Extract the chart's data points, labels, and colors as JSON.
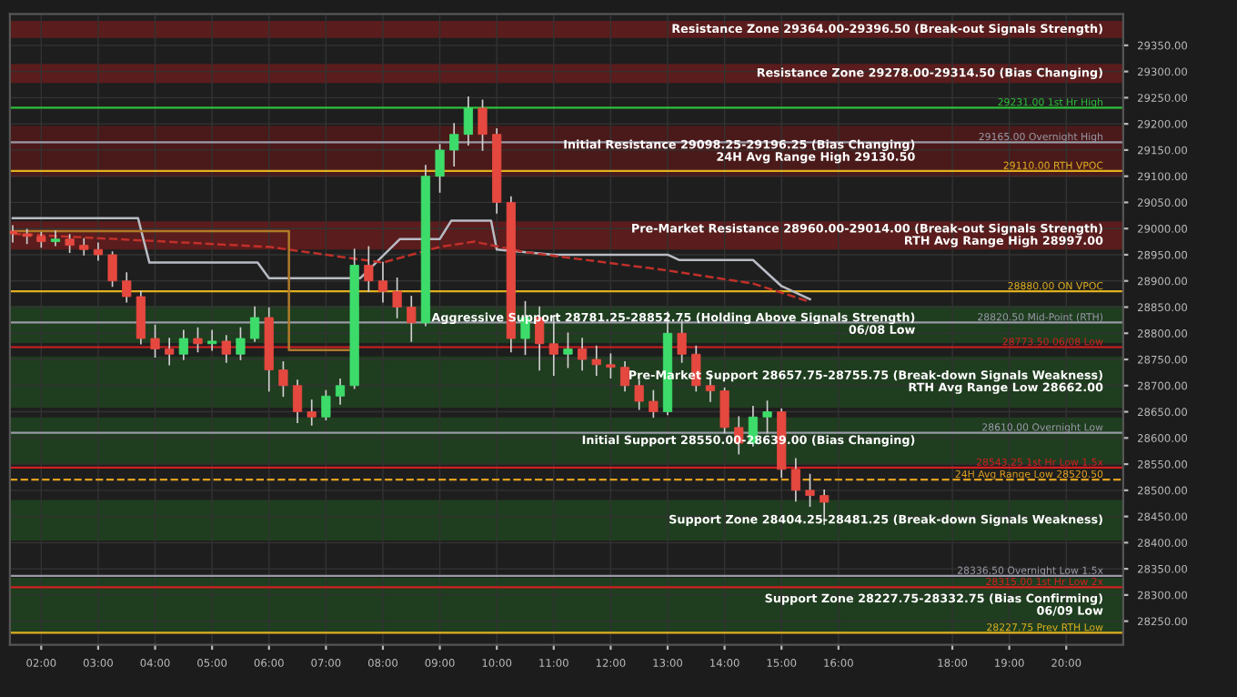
{
  "chart_data": {
    "type": "candlestick",
    "x": [
      1.5,
      1.75,
      2.0,
      2.25,
      2.5,
      2.75,
      3.0,
      3.25,
      3.5,
      3.75,
      4.0,
      4.25,
      4.5,
      4.75,
      5.0,
      5.25,
      5.5,
      5.75,
      6.0,
      6.25,
      6.5,
      6.75,
      7.0,
      7.25,
      7.5,
      7.75,
      8.0,
      8.25,
      8.5,
      8.75,
      9.0,
      9.25,
      9.5,
      9.75,
      10.0,
      10.25,
      10.5,
      10.75,
      11.0,
      11.25,
      11.5,
      11.75,
      12.0,
      12.25,
      12.5,
      12.75,
      13.0,
      13.25,
      13.5,
      13.75,
      14.0,
      14.25,
      14.5,
      14.75,
      15.0,
      15.25,
      15.5,
      15.75
    ],
    "ohlc": [
      [
        28995,
        29005,
        28975,
        28990
      ],
      [
        28990,
        28998,
        28972,
        28985
      ],
      [
        28985,
        28992,
        28965,
        28975
      ],
      [
        28975,
        28995,
        28968,
        28980
      ],
      [
        28980,
        28988,
        28955,
        28968
      ],
      [
        28968,
        28980,
        28950,
        28960
      ],
      [
        28960,
        28972,
        28940,
        28950
      ],
      [
        28950,
        28955,
        28890,
        28900
      ],
      [
        28900,
        28915,
        28860,
        28870
      ],
      [
        28870,
        28880,
        28780,
        28790
      ],
      [
        28790,
        28815,
        28755,
        28770
      ],
      [
        28770,
        28790,
        28740,
        28760
      ],
      [
        28760,
        28805,
        28750,
        28790
      ],
      [
        28790,
        28810,
        28765,
        28780
      ],
      [
        28780,
        28805,
        28768,
        28785
      ],
      [
        28785,
        28795,
        28745,
        28760
      ],
      [
        28760,
        28810,
        28750,
        28790
      ],
      [
        28790,
        28850,
        28785,
        28830
      ],
      [
        28830,
        28848,
        28690,
        28730
      ],
      [
        28730,
        28745,
        28680,
        28700
      ],
      [
        28700,
        28710,
        28630,
        28650
      ],
      [
        28650,
        28672,
        28625,
        28640
      ],
      [
        28640,
        28690,
        28635,
        28680
      ],
      [
        28680,
        28712,
        28665,
        28700
      ],
      [
        28700,
        28960,
        28695,
        28930
      ],
      [
        28930,
        28965,
        28880,
        28900
      ],
      [
        28900,
        28935,
        28860,
        28880
      ],
      [
        28880,
        28905,
        28830,
        28850
      ],
      [
        28850,
        28870,
        28785,
        28820
      ],
      [
        28820,
        29120,
        28815,
        29100
      ],
      [
        29100,
        29160,
        29070,
        29150
      ],
      [
        29150,
        29200,
        29120,
        29180
      ],
      [
        29180,
        29251,
        29160,
        29230
      ],
      [
        29230,
        29245,
        29150,
        29180
      ],
      [
        29180,
        29190,
        29030,
        29050
      ],
      [
        29050,
        29060,
        28765,
        28790
      ],
      [
        28790,
        28860,
        28760,
        28830
      ],
      [
        28830,
        28850,
        28730,
        28780
      ],
      [
        28780,
        28830,
        28720,
        28760
      ],
      [
        28760,
        28800,
        28735,
        28770
      ],
      [
        28770,
        28790,
        28730,
        28750
      ],
      [
        28750,
        28775,
        28720,
        28740
      ],
      [
        28740,
        28760,
        28715,
        28735
      ],
      [
        28735,
        28745,
        28690,
        28700
      ],
      [
        28700,
        28710,
        28655,
        28670
      ],
      [
        28670,
        28690,
        28640,
        28650
      ],
      [
        28650,
        28840,
        28645,
        28800
      ],
      [
        28800,
        28825,
        28745,
        28760
      ],
      [
        28760,
        28775,
        28690,
        28700
      ],
      [
        28700,
        28720,
        28670,
        28690
      ],
      [
        28690,
        28695,
        28610,
        28620
      ],
      [
        28620,
        28640,
        28570,
        28590
      ],
      [
        28590,
        28660,
        28585,
        28640
      ],
      [
        28640,
        28670,
        28610,
        28650
      ],
      [
        28650,
        28655,
        28525,
        28540
      ],
      [
        28540,
        28560,
        28480,
        28500
      ],
      [
        28500,
        28530,
        28470,
        28490
      ],
      [
        28490,
        28500,
        28435,
        28477.25
      ]
    ],
    "series": [
      {
        "type": "line",
        "color": "#b9bcc4",
        "x": [
          1.5,
          3.7,
          3.9,
          5.8,
          6.0,
          7.6,
          8.3,
          9.0,
          9.2,
          9.9,
          10.0,
          11.0,
          13.0,
          13.2,
          14.5,
          15.0,
          15.5
        ],
        "values": [
          29020,
          29020,
          28935,
          28935,
          28905,
          28905,
          28980,
          28980,
          29015,
          29015,
          28960,
          28950,
          28950,
          28940,
          28940,
          28890,
          28865
        ]
      },
      {
        "type": "line",
        "color": "#c0302a",
        "line_style": "dashed",
        "x": [
          1.5,
          6.0,
          8.0,
          9.0,
          9.6,
          10.5,
          13.0,
          14.5,
          15.5
        ],
        "values": [
          28990,
          28965,
          28935,
          28965,
          28975,
          28955,
          28920,
          28895,
          28860
        ]
      },
      {
        "type": "line",
        "color": "#b07a2a",
        "x": [
          1.5,
          6.35,
          6.35,
          7.4
        ],
        "values": [
          28995,
          28995,
          28768,
          28768
        ]
      }
    ],
    "bands": [
      {
        "axis": "y",
        "from": 29364.0,
        "to": 29396.5,
        "label": "Resistance Zone 29364.00-29396.50 (Break-out Signals Strength)",
        "color": "#5a1c1c"
      },
      {
        "axis": "y",
        "from": 29278.0,
        "to": 29314.5,
        "label": "Resistance Zone 29278.00-29314.50 (Bias Changing)",
        "color": "#5a1c1c"
      },
      {
        "axis": "y",
        "from": 29098.25,
        "to": 29196.25,
        "label": "Initial Resistance 29098.25-29196.25 (Bias Changing)\n24H Avg Range High 29130.50",
        "color": "#4a1a1a"
      },
      {
        "axis": "y",
        "from": 28960.0,
        "to": 29014.0,
        "label": "Pre-Market Resistance 28960.00-29014.00 (Break-out Signals Strength)\nRTH Avg Range High 28997.00",
        "color": "#5a1c1c"
      },
      {
        "axis": "y",
        "from": 28781.25,
        "to": 28852.75,
        "label": "Aggressive Support 28781.25-28852.75 (Holding Above Signals Strength)\n06/08 Low",
        "color": "#1f3d1f"
      },
      {
        "axis": "y",
        "from": 28657.75,
        "to": 28755.75,
        "label": "Pre-Market Support 28657.75-28755.75 (Break-down Signals Weakness)\nRTH Avg Range Low 28662.00",
        "color": "#1f3d1f"
      },
      {
        "axis": "y",
        "from": 28550.0,
        "to": 28639.0,
        "label": "Initial Support 28550.00-28639.00 (Bias Changing)",
        "color": "#1f3d1f"
      },
      {
        "axis": "y",
        "from": 28404.25,
        "to": 28481.25,
        "label": "Support Zone 28404.25-28481.25 (Break-down Signals Weakness)",
        "color": "#1f3d1f"
      },
      {
        "axis": "y",
        "from": 28227.75,
        "to": 28332.75,
        "label": "Support Zone 28227.75-28332.75 (Bias Confirming)\n06/09 Low",
        "color": "#1f3d1f"
      }
    ],
    "ref_lines": [
      {
        "axis": "y",
        "value": 29231.0,
        "label": "29231.00 1st Hr High",
        "color": "#2fbf3a",
        "line_style": "solid"
      },
      {
        "axis": "y",
        "value": 29165.0,
        "label": "29165.00 Overnight High",
        "color": "#9a9aa8",
        "line_style": "solid"
      },
      {
        "axis": "y",
        "value": 29110.0,
        "label": "29110.00 RTH VPOC",
        "color": "#e0b020",
        "line_style": "solid"
      },
      {
        "axis": "y",
        "value": 28880.0,
        "label": "28880.00 ON VPOC",
        "color": "#e0b020",
        "line_style": "solid"
      },
      {
        "axis": "y",
        "value": 28820.5,
        "label": "28820.50 Mid-Point (RTH)",
        "color": "#9a9aa8",
        "line_style": "solid"
      },
      {
        "axis": "y",
        "value": 28773.5,
        "label": "28773.50 06/08 Low",
        "color": "#d02020",
        "line_style": "solid"
      },
      {
        "axis": "y",
        "value": 28610.0,
        "label": "28610.00 Overnight Low",
        "color": "#9a9aa8",
        "line_style": "solid"
      },
      {
        "axis": "y",
        "value": 28543.25,
        "label": "28543.25 1st Hr Low 1.5x",
        "color": "#d02020",
        "line_style": "solid"
      },
      {
        "axis": "y",
        "value": 28520.5,
        "label": "24H Avg Range Low 28520.50",
        "color": "#e0a020",
        "line_style": "dashed"
      },
      {
        "axis": "y",
        "value": 28336.5,
        "label": "28336.50 Overnight Low 1.5x",
        "color": "#9a9aa8",
        "line_style": "solid"
      },
      {
        "axis": "y",
        "value": 28315.0,
        "label": "28315.00 1st Hr Low 2x",
        "color": "#d02020",
        "line_style": "solid"
      },
      {
        "axis": "y",
        "value": 28227.75,
        "label": "28227.75 Prev RTH Low",
        "color": "#e0b020",
        "line_style": "solid"
      }
    ],
    "xlim": [
      1.45,
      21.0
    ],
    "xticks": [
      {
        "value": 2,
        "label": "02:00"
      },
      {
        "value": 3,
        "label": "03:00"
      },
      {
        "value": 4,
        "label": "04:00"
      },
      {
        "value": 5,
        "label": "05:00"
      },
      {
        "value": 6,
        "label": "06:00"
      },
      {
        "value": 7,
        "label": "07:00"
      },
      {
        "value": 8,
        "label": "08:00"
      },
      {
        "value": 9,
        "label": "09:00"
      },
      {
        "value": 10,
        "label": "10:00"
      },
      {
        "value": 11,
        "label": "11:00"
      },
      {
        "value": 12,
        "label": "12:00"
      },
      {
        "value": 13,
        "label": "13:00"
      },
      {
        "value": 14,
        "label": "14:00"
      },
      {
        "value": 15,
        "label": "15:00"
      },
      {
        "value": 16,
        "label": "16:00"
      },
      {
        "value": 18,
        "label": "18:00"
      },
      {
        "value": 19,
        "label": "19:00"
      },
      {
        "value": 20,
        "label": "20:00"
      }
    ],
    "ylim": [
      28205,
      29410
    ],
    "yticks": [
      {
        "value": 28250,
        "label": "28250.00"
      },
      {
        "value": 28300,
        "label": "28300.00"
      },
      {
        "value": 28350,
        "label": "28350.00"
      },
      {
        "value": 28400,
        "label": "28400.00"
      },
      {
        "value": 28450,
        "label": "28450.00"
      },
      {
        "value": 28500,
        "label": "28500.00"
      },
      {
        "value": 28550,
        "label": "28550.00"
      },
      {
        "value": 28600,
        "label": "28600.00"
      },
      {
        "value": 28650,
        "label": "28650.00"
      },
      {
        "value": 28700,
        "label": "28700.00"
      },
      {
        "value": 28750,
        "label": "28750.00"
      },
      {
        "value": 28800,
        "label": "28800.00"
      },
      {
        "value": 28850,
        "label": "28850.00"
      },
      {
        "value": 28900,
        "label": "28900.00"
      },
      {
        "value": 28950,
        "label": "28950.00"
      },
      {
        "value": 29000,
        "label": "29000.00"
      },
      {
        "value": 29050,
        "label": "29050.00"
      },
      {
        "value": 29100,
        "label": "29100.00"
      },
      {
        "value": 29150,
        "label": "29150.00"
      },
      {
        "value": 29200,
        "label": "29200.00"
      },
      {
        "value": 29250,
        "label": "29250.00"
      },
      {
        "value": 29300,
        "label": "29300.00"
      },
      {
        "value": 29350,
        "label": "29350.00"
      }
    ],
    "grid": true
  }
}
